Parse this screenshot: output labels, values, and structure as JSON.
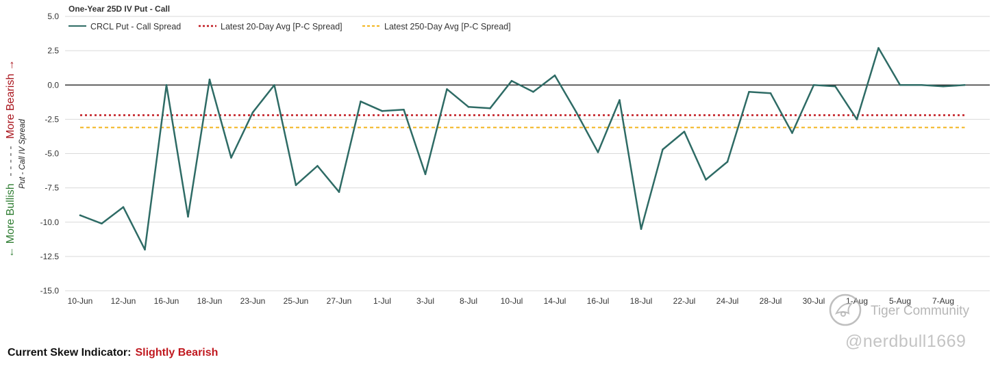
{
  "chart_data": {
    "type": "line",
    "title": "One-Year 25D IV Put - Call",
    "ylabel_bearish": "More Bearish →",
    "ylabel_separator": "- - - - -",
    "ylabel_bullish": "← More Bullish",
    "ylabel_secondary": "Put - Call IV Spread",
    "ylim": [
      -15,
      5
    ],
    "yticks": [
      5.0,
      2.5,
      0.0,
      -2.5,
      -5.0,
      -7.5,
      -10.0,
      -12.5,
      -15.0
    ],
    "ytick_labels": [
      "5.0",
      "2.5",
      "0.0",
      "-2.5",
      "-5.0",
      "-7.5",
      "-10.0",
      "-12.5",
      "-15.0"
    ],
    "xtick_labels": [
      "10-Jun",
      "12-Jun",
      "16-Jun",
      "18-Jun",
      "23-Jun",
      "25-Jun",
      "27-Jun",
      "1-Jul",
      "3-Jul",
      "8-Jul",
      "10-Jul",
      "14-Jul",
      "16-Jul",
      "18-Jul",
      "22-Jul",
      "24-Jul",
      "28-Jul",
      "30-Jul",
      "1-Aug",
      "5-Aug",
      "7-Aug"
    ],
    "grid": true,
    "legend_position": "top-left",
    "series": [
      {
        "name": "CRCL Put - Call Spread",
        "style": "solid",
        "color": "#2e6b65",
        "values": [
          -9.5,
          -10.1,
          -8.9,
          -12.0,
          0.0,
          -9.6,
          0.4,
          -5.3,
          -2.0,
          0.0,
          -7.3,
          -5.9,
          -7.8,
          -1.2,
          -1.9,
          -1.8,
          -6.5,
          -0.3,
          -1.6,
          -1.7,
          0.3,
          -0.5,
          0.7,
          -2.0,
          -4.9,
          -1.1,
          -10.5,
          -4.7,
          -3.4,
          -6.9,
          -5.6,
          -0.5,
          -0.6,
          -3.5,
          0.0,
          -0.1,
          -2.5,
          2.7,
          0.0,
          0.0,
          -0.1,
          0.0
        ]
      },
      {
        "name": "Latest 20-Day Avg [P-C Spread]",
        "style": "dotted",
        "color": "#c0181f",
        "value": -2.2
      },
      {
        "name": "Latest 250-Day Avg [P-C Spread]",
        "style": "dashed",
        "color": "#f2b41c",
        "value": -3.1
      }
    ],
    "zero_line": 0.0
  },
  "indicator": {
    "label": "Current Skew Indicator:",
    "value": "Slightly Bearish",
    "value_color": "#c0181f"
  },
  "watermark": {
    "brand": "Tiger Community",
    "handle": "@nerdbull1669"
  },
  "colors": {
    "grid": "#d9d9d9",
    "bearish": "#a8121a",
    "bullish": "#2f7d32"
  }
}
